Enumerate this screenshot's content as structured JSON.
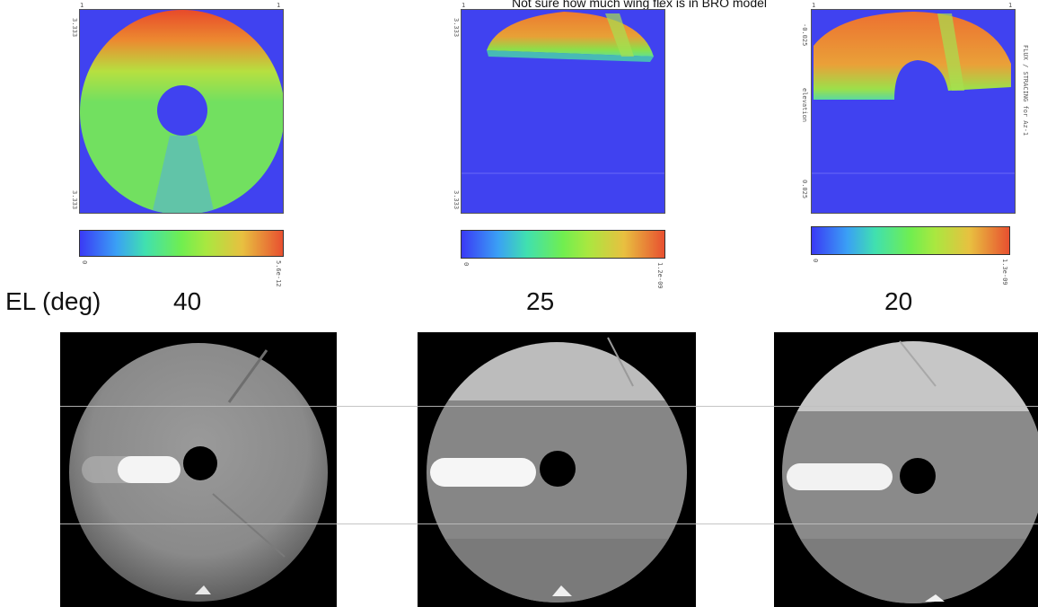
{
  "note": "Not sure how much wing flex is in BRO model",
  "row_label": "EL (deg)",
  "columns": [
    {
      "elevation": "40",
      "map_ticks": {
        "top_left": "1",
        "top_right": "1",
        "left_top": "3.333",
        "left_bottom": "3.333"
      },
      "colorbar_min": "0",
      "colorbar_max": "5.6e-12"
    },
    {
      "elevation": "25",
      "map_ticks": {
        "top_left": "1",
        "top_right": "1",
        "left_top": "3.333",
        "left_bottom": "3.333"
      },
      "colorbar_min": "0",
      "colorbar_max": "1.2e-09"
    },
    {
      "elevation": "20",
      "map_ticks": {
        "top_left": "1",
        "top_right": "1",
        "left_top": "-0.025",
        "left_bottom": "0.025",
        "left_mid": "elevation"
      },
      "side_label": "FLUX / STRACING for Az-1",
      "colorbar_min": "0",
      "colorbar_max": "1.3e-09"
    }
  ]
}
